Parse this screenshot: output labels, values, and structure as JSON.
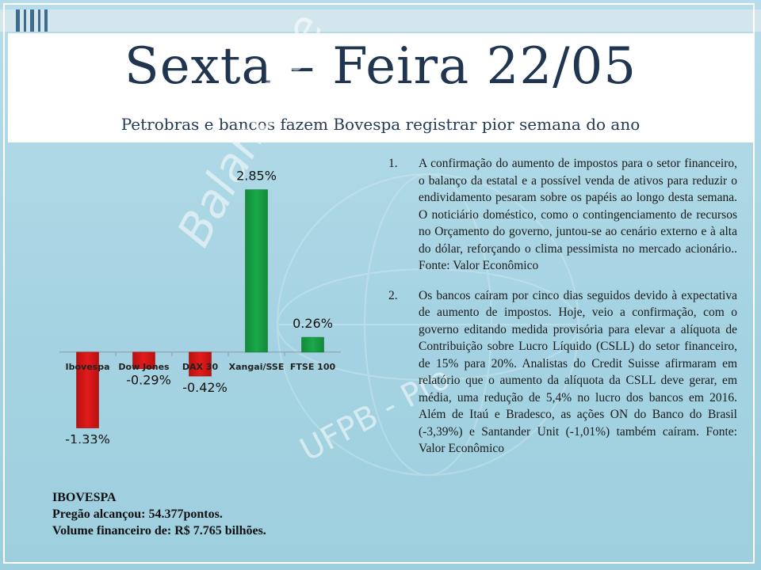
{
  "title": "Sexta – Feira 22/05",
  "subtitle": "Petrobras e bancos fazem Bovespa registrar pior semana do ano",
  "colors": {
    "negative": "#e31b1b",
    "positive": "#1aa84a",
    "title": "#1f3550"
  },
  "watermark": {
    "text_left": "Balança de",
    "text_bottom": "UFPB - Pro"
  },
  "chart_data": {
    "type": "bar",
    "categories": [
      "Ibovespa",
      "Dow Jones",
      "DAX 30",
      "Xangai/SSE",
      "FTSE 100"
    ],
    "values": [
      -1.33,
      -0.29,
      -0.42,
      2.85,
      0.26
    ],
    "data_labels": [
      "-1.33%",
      "-0.29%",
      "-0.42%",
      "2.85%",
      "0.26%"
    ],
    "ylim": [
      -1.6,
      3.4
    ],
    "legend": "none",
    "grid": false
  },
  "list": [
    {
      "number": "1.",
      "text": "A confirmação do aumento de impostos para o setor financeiro, o balanço da estatal e a possível venda de ativos para reduzir o endividamento pesaram sobre os papéis ao longo desta semana. O noticiário doméstico, como o contingenciamento de recursos no Orçamento do governo, juntou-se ao cenário externo e à alta do dólar, reforçando o clima pessimista no mercado acionário.. Fonte: Valor Econômico"
    },
    {
      "number": "2.",
      "text": "Os bancos caíram por cinco dias seguidos devido à expectativa de aumento de impostos. Hoje, veio a confirmação, com o governo editando medida provisória para elevar a alíquota de Contribuição sobre Lucro Líquido (CSLL) do setor financeiro, de 15% para 20%. Analistas do Credit Suisse afirmaram em relatório que o aumento da alíquota da CSLL deve gerar, em média, uma redução de 5,4% no lucro dos bancos em 2016. Além de Itaú e Bradesco, as ações ON do Banco do Brasil (-3,39%) e Santander Unit (-1,01%) também caíram. Fonte: Valor Econômico"
    }
  ],
  "ibovespa": {
    "heading": "IBOVESPA",
    "line1": "Pregão alcançou: 54.377pontos.",
    "line2": "Volume financeiro de: R$ 7.765 bilhões."
  }
}
